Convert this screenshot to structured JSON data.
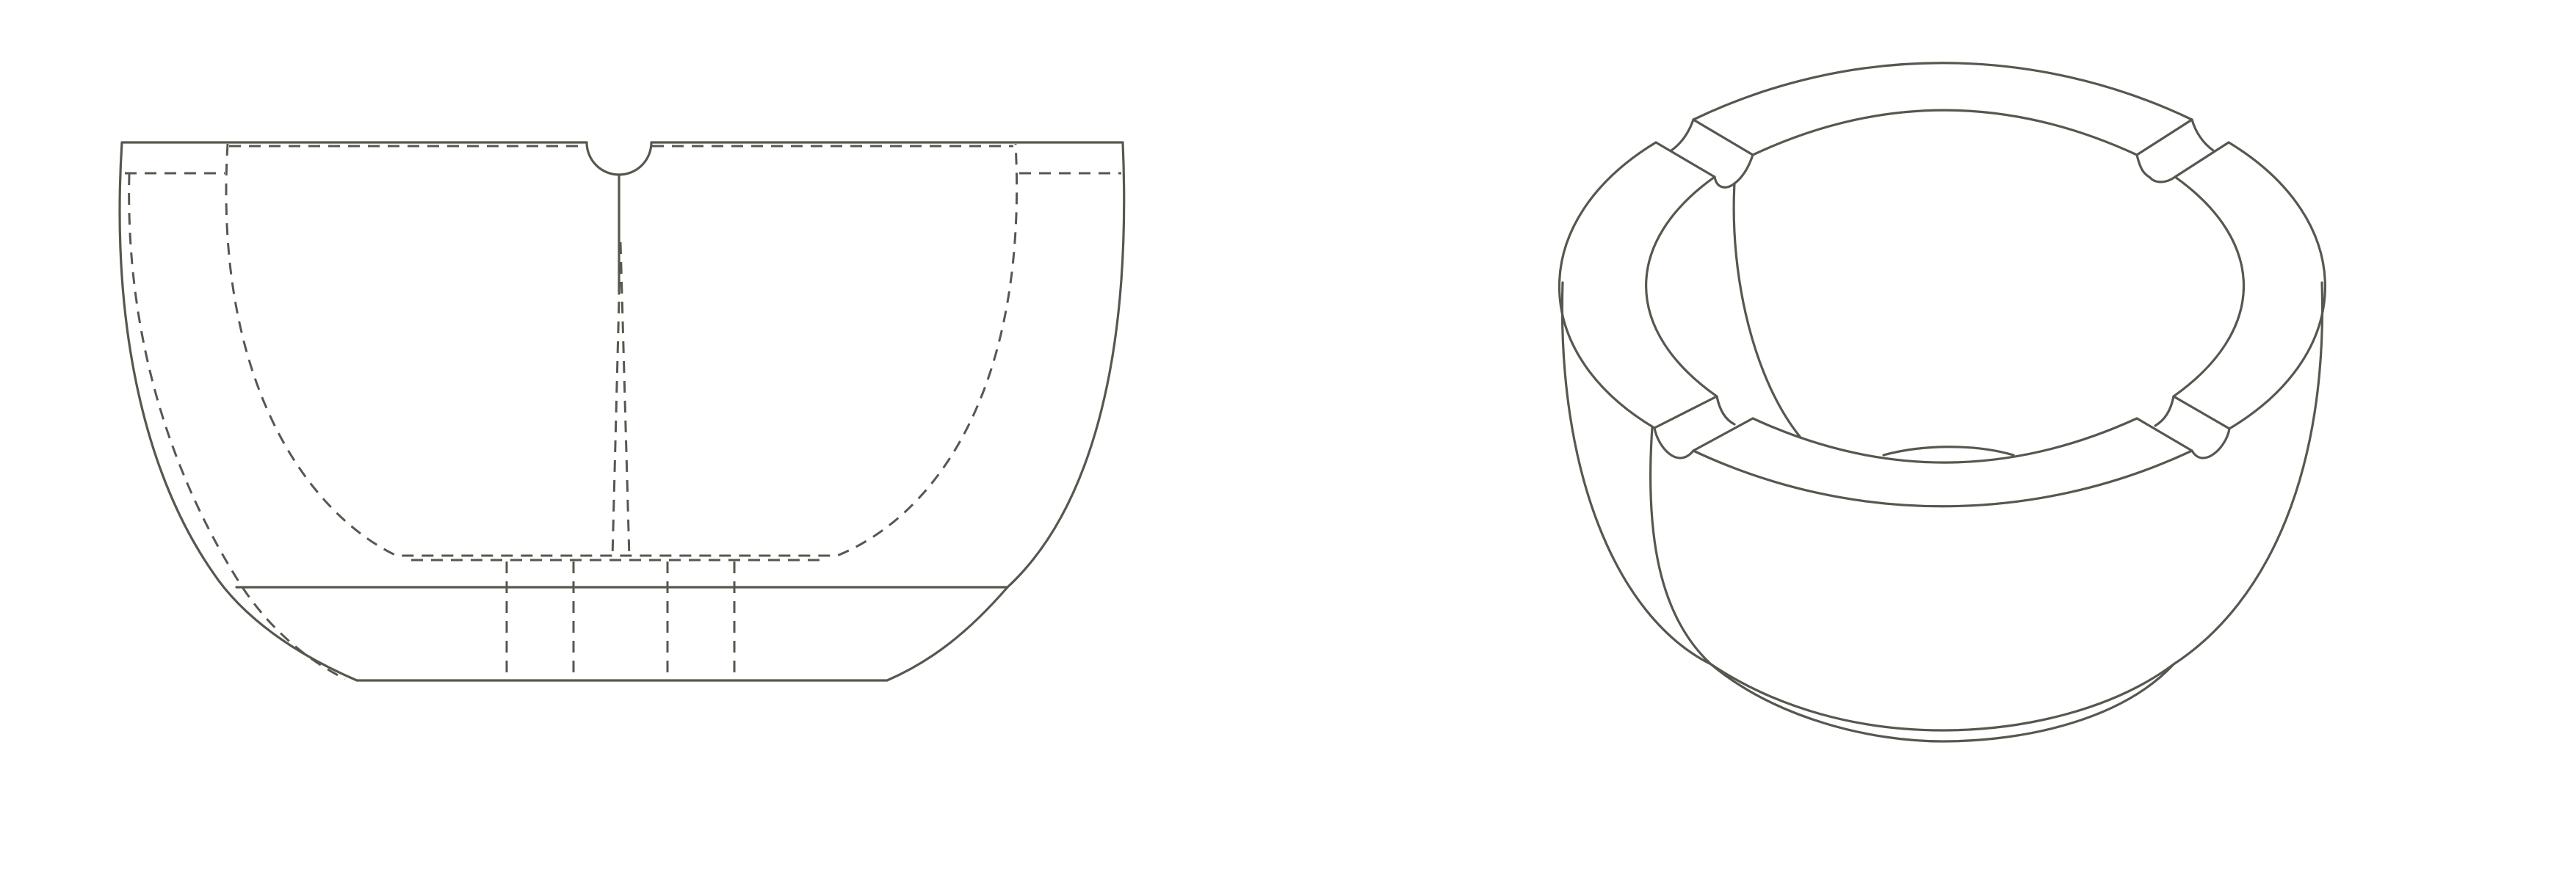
{
  "drawing": {
    "views": [
      {
        "id": "front-section-view"
      },
      {
        "id": "perspective-view"
      }
    ],
    "colors": {
      "line": "#58574f",
      "background": "#ffffff"
    }
  }
}
